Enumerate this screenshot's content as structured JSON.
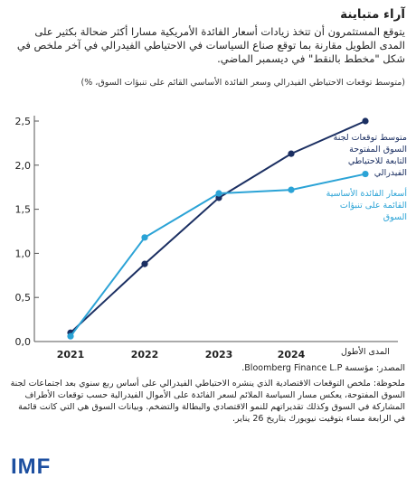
{
  "header": {
    "title": "آراء متباينة",
    "intro": "يتوقع المستثمرون أن تتخذ زيادات أسعار الفائدة الأمريكية مسارا أكثر ضحالة بكثير على المدى الطويل مقارنة بما توقع صناع السياسات في الاحتياطي الفيدرالي في آخر ملخص في شكل \"مخطط بالنقط\" في ديسمبر الماضي.",
    "subtitle": "(متوسط توقعات الاحتياطي الفيدرالي وسعر الفائدة الأساسي القائم على تنبؤات السوق، %)"
  },
  "chart_data": {
    "type": "line",
    "categories": [
      "2021",
      "2022",
      "2023",
      "2024",
      "المدى الأطول"
    ],
    "ylim": [
      0,
      2.5
    ],
    "yticks": [
      "0,0",
      "0,5",
      "1,0",
      "1,5",
      "2,0",
      "2,5"
    ],
    "grid": false,
    "legend_placement": "right",
    "series": [
      {
        "name": "متوسط توقعات لجنة السوق المفتوحة التابعة للاحتياطي الفيدرالي",
        "color": "#1b2f62",
        "values": [
          0.1,
          0.88,
          1.63,
          2.13,
          2.5
        ]
      },
      {
        "name": "أسعار الفائدة الأساسية القائمة على تنبؤات السوق",
        "color": "#2ba3d6",
        "values": [
          0.06,
          1.18,
          1.68,
          1.72,
          1.9
        ]
      }
    ]
  },
  "footer": {
    "source": "المصدر: مؤسسة Bloomberg Finance L.P.",
    "note": "ملحوظة: ملخص التوقعات الاقتصادية الذي ينشره الاحتياطي الفيدرالي على أساس ربع سنوي بعد اجتماعات لجنة السوق المفتوحة، يعكس مسار السياسة الملائم لسعر الفائدة على الأموال الفيدرالية حسب توقعات الأطراف المشاركة في السوق وكذلك تقديراتهم للنمو الاقتصادي والبطالة والتضخم. وبيانات السوق هي التي كانت قائمة في الرابعة مساء بتوقيت نيويورك بتاريخ 26 يناير.",
    "logo": "IMF"
  }
}
